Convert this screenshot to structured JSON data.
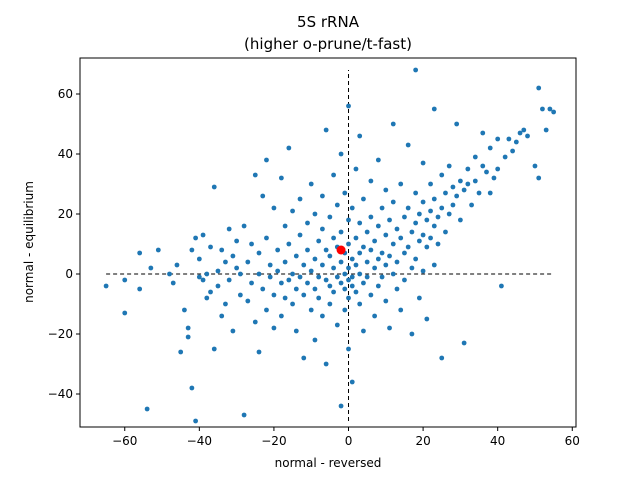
{
  "chart_data": {
    "type": "scatter",
    "title": "5S rRNA",
    "subtitle": "(higher o-prune/t-fast)",
    "xlabel": "normal - reversed",
    "ylabel": "normal - equilibrium",
    "xlim": [
      -72,
      61
    ],
    "ylim": [
      -51,
      72
    ],
    "xticks": [
      -60,
      -40,
      -20,
      0,
      20,
      40,
      60
    ],
    "yticks": [
      -40,
      -20,
      0,
      20,
      40,
      60
    ],
    "grid": false,
    "point_color": "#1f77b4",
    "highlight_color": "#ff0000",
    "reference_lines": {
      "horizontal": {
        "y": 0,
        "x_from": -65,
        "x_to": 55
      },
      "vertical": {
        "x": 0,
        "y_from": -49,
        "y_to": 68
      }
    },
    "highlight_point": {
      "x": -2,
      "y": 8
    },
    "series": [
      {
        "points": [
          [
            -65,
            -4
          ],
          [
            -60,
            -2
          ],
          [
            -60,
            -13
          ],
          [
            -56,
            -5
          ],
          [
            -56,
            7
          ],
          [
            -54,
            -45
          ],
          [
            -53,
            2
          ],
          [
            -51,
            8
          ],
          [
            -48,
            0
          ],
          [
            -47,
            -3
          ],
          [
            -46,
            3
          ],
          [
            -45,
            -26
          ],
          [
            -44,
            -12
          ],
          [
            -43,
            -18
          ],
          [
            -43,
            -21
          ],
          [
            -42,
            8
          ],
          [
            -42,
            -38
          ],
          [
            -41,
            12
          ],
          [
            -41,
            -49
          ],
          [
            -40,
            -1
          ],
          [
            -40,
            5
          ],
          [
            -39,
            13
          ],
          [
            -39,
            -2
          ],
          [
            -38,
            0
          ],
          [
            -38,
            -8
          ],
          [
            -37,
            -6
          ],
          [
            -37,
            9
          ],
          [
            -36,
            -25
          ],
          [
            -36,
            29
          ],
          [
            -35,
            1
          ],
          [
            -35,
            -4
          ],
          [
            -34,
            8
          ],
          [
            -34,
            -14
          ],
          [
            -33,
            4
          ],
          [
            -33,
            -10
          ],
          [
            -32,
            15
          ],
          [
            -32,
            -2
          ],
          [
            -31,
            6
          ],
          [
            -31,
            -19
          ],
          [
            -30,
            2
          ],
          [
            -30,
            11
          ],
          [
            -29,
            -7
          ],
          [
            -29,
            0
          ],
          [
            -28,
            -47
          ],
          [
            -28,
            16
          ],
          [
            -27,
            4
          ],
          [
            -27,
            -9
          ],
          [
            -26,
            10
          ],
          [
            -26,
            -3
          ],
          [
            -25,
            33
          ],
          [
            -25,
            -16
          ],
          [
            -24,
            7
          ],
          [
            -24,
            0
          ],
          [
            -24,
            -26
          ],
          [
            -23,
            26
          ],
          [
            -23,
            -5
          ],
          [
            -22,
            38
          ],
          [
            -22,
            12
          ],
          [
            -22,
            -12
          ],
          [
            -21,
            3
          ],
          [
            -21,
            -1
          ],
          [
            -20,
            22
          ],
          [
            -20,
            -7
          ],
          [
            -20,
            -18
          ],
          [
            -19,
            8
          ],
          [
            -19,
            1
          ],
          [
            -18,
            32
          ],
          [
            -18,
            -3
          ],
          [
            -18,
            -14
          ],
          [
            -17,
            16
          ],
          [
            -17,
            4
          ],
          [
            -17,
            -8
          ],
          [
            -16,
            42
          ],
          [
            -16,
            10
          ],
          [
            -16,
            -2
          ],
          [
            -15,
            21
          ],
          [
            -15,
            0
          ],
          [
            -15,
            -10
          ],
          [
            -14,
            6
          ],
          [
            -14,
            -5
          ],
          [
            -14,
            -19
          ],
          [
            -13,
            25
          ],
          [
            -13,
            13
          ],
          [
            -13,
            -1
          ],
          [
            -12,
            3
          ],
          [
            -12,
            -7
          ],
          [
            -12,
            -28
          ],
          [
            -11,
            17
          ],
          [
            -11,
            8
          ],
          [
            -11,
            -3
          ],
          [
            -10,
            30
          ],
          [
            -10,
            1
          ],
          [
            -10,
            -12
          ],
          [
            -9,
            20
          ],
          [
            -9,
            5
          ],
          [
            -9,
            -5
          ],
          [
            -9,
            -22
          ],
          [
            -8,
            11
          ],
          [
            -8,
            -1
          ],
          [
            -8,
            -8
          ],
          [
            -7,
            26
          ],
          [
            -7,
            15
          ],
          [
            -7,
            3
          ],
          [
            -7,
            -14
          ],
          [
            -6,
            48
          ],
          [
            -6,
            8
          ],
          [
            -6,
            -2
          ],
          [
            -6,
            -30
          ],
          [
            -5,
            19
          ],
          [
            -5,
            6
          ],
          [
            -5,
            -4
          ],
          [
            -5,
            -10
          ],
          [
            -4,
            33
          ],
          [
            -4,
            12
          ],
          [
            -4,
            2
          ],
          [
            -4,
            -6
          ],
          [
            -3,
            23
          ],
          [
            -3,
            9
          ],
          [
            -3,
            -1
          ],
          [
            -3,
            -17
          ],
          [
            -2,
            40
          ],
          [
            -2,
            14
          ],
          [
            -2,
            4
          ],
          [
            -2,
            -3
          ],
          [
            -2,
            -44
          ],
          [
            -1,
            27
          ],
          [
            -1,
            7
          ],
          [
            -1,
            0
          ],
          [
            -1,
            -5
          ],
          [
            -1,
            -12
          ],
          [
            0,
            56
          ],
          [
            0,
            18
          ],
          [
            0,
            10
          ],
          [
            0,
            2
          ],
          [
            0,
            -2
          ],
          [
            0,
            -8
          ],
          [
            0,
            -25
          ],
          [
            1,
            22
          ],
          [
            1,
            5
          ],
          [
            1,
            -1
          ],
          [
            1,
            -4
          ],
          [
            1,
            -36
          ],
          [
            2,
            35
          ],
          [
            2,
            12
          ],
          [
            2,
            3
          ],
          [
            2,
            -6
          ],
          [
            3,
            46
          ],
          [
            3,
            17
          ],
          [
            3,
            7
          ],
          [
            3,
            0
          ],
          [
            3,
            -10
          ],
          [
            4,
            25
          ],
          [
            4,
            9
          ],
          [
            4,
            -3
          ],
          [
            4,
            -19
          ],
          [
            5,
            14
          ],
          [
            5,
            4
          ],
          [
            5,
            -1
          ],
          [
            6,
            31
          ],
          [
            6,
            19
          ],
          [
            6,
            8
          ],
          [
            6,
            -7
          ],
          [
            7,
            11
          ],
          [
            7,
            2
          ],
          [
            7,
            -14
          ],
          [
            8,
            38
          ],
          [
            8,
            16
          ],
          [
            8,
            5
          ],
          [
            8,
            -4
          ],
          [
            9,
            22
          ],
          [
            9,
            7
          ],
          [
            9,
            -1
          ],
          [
            10,
            28
          ],
          [
            10,
            13
          ],
          [
            10,
            3
          ],
          [
            10,
            -9
          ],
          [
            11,
            18
          ],
          [
            11,
            6
          ],
          [
            11,
            -18
          ],
          [
            12,
            50
          ],
          [
            12,
            24
          ],
          [
            12,
            10
          ],
          [
            12,
            0
          ],
          [
            13,
            15
          ],
          [
            13,
            4
          ],
          [
            13,
            -5
          ],
          [
            14,
            30
          ],
          [
            14,
            12
          ],
          [
            14,
            -12
          ],
          [
            15,
            19
          ],
          [
            15,
            7
          ],
          [
            15,
            -2
          ],
          [
            16,
            43
          ],
          [
            16,
            22
          ],
          [
            16,
            9
          ],
          [
            17,
            14
          ],
          [
            17,
            2
          ],
          [
            17,
            -20
          ],
          [
            18,
            68
          ],
          [
            18,
            27
          ],
          [
            18,
            17
          ],
          [
            18,
            5
          ],
          [
            19,
            20
          ],
          [
            19,
            11
          ],
          [
            19,
            -8
          ],
          [
            20,
            37
          ],
          [
            20,
            24
          ],
          [
            20,
            13
          ],
          [
            20,
            1
          ],
          [
            21,
            18
          ],
          [
            21,
            9
          ],
          [
            21,
            -15
          ],
          [
            22,
            30
          ],
          [
            22,
            21
          ],
          [
            22,
            12
          ],
          [
            23,
            55
          ],
          [
            23,
            25
          ],
          [
            23,
            16
          ],
          [
            23,
            3
          ],
          [
            24,
            19
          ],
          [
            24,
            10
          ],
          [
            25,
            33
          ],
          [
            25,
            22
          ],
          [
            25,
            -28
          ],
          [
            26,
            27
          ],
          [
            26,
            14
          ],
          [
            27,
            36
          ],
          [
            27,
            20
          ],
          [
            28,
            29
          ],
          [
            28,
            23
          ],
          [
            29,
            50
          ],
          [
            29,
            26
          ],
          [
            30,
            31
          ],
          [
            30,
            18
          ],
          [
            31,
            28
          ],
          [
            31,
            -23
          ],
          [
            32,
            35
          ],
          [
            32,
            30
          ],
          [
            33,
            23
          ],
          [
            34,
            39
          ],
          [
            34,
            31
          ],
          [
            35,
            27
          ],
          [
            36,
            47
          ],
          [
            36,
            36
          ],
          [
            37,
            34
          ],
          [
            38,
            42
          ],
          [
            38,
            27
          ],
          [
            39,
            32
          ],
          [
            40,
            35
          ],
          [
            40,
            45
          ],
          [
            41,
            -4
          ],
          [
            42,
            39
          ],
          [
            43,
            45
          ],
          [
            44,
            41
          ],
          [
            45,
            44
          ],
          [
            46,
            47
          ],
          [
            47,
            48
          ],
          [
            48,
            46
          ],
          [
            50,
            36
          ],
          [
            51,
            32
          ],
          [
            51,
            62
          ],
          [
            52,
            55
          ],
          [
            53,
            48
          ],
          [
            54,
            55
          ],
          [
            55,
            54
          ]
        ]
      }
    ]
  }
}
